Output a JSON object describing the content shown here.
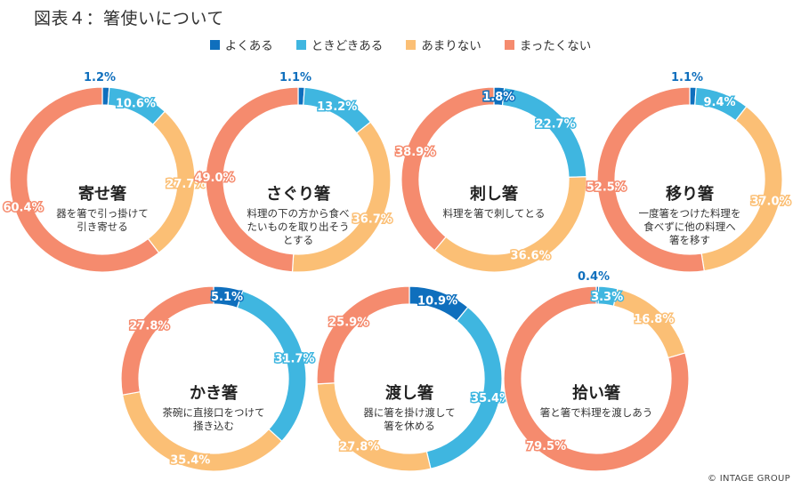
{
  "page": {
    "title": "図表４：箸使いについて",
    "copyright": "© INTAGE GROUP"
  },
  "legend": [
    {
      "label": "よくある",
      "color": "#0f6fbd"
    },
    {
      "label": "ときどきある",
      "color": "#3fb6e0"
    },
    {
      "label": "あまりない",
      "color": "#fbbf75"
    },
    {
      "label": "まったくない",
      "color": "#f58b6e"
    }
  ],
  "chart_data": [
    {
      "type": "pie",
      "title": "寄せ箸",
      "description": [
        "器を箸で引っ掛けて",
        "引き寄せる"
      ],
      "categories": [
        "よくある",
        "ときどきある",
        "あまりない",
        "まったくない"
      ],
      "values": [
        1.2,
        10.6,
        27.7,
        60.4
      ],
      "labels": [
        "1.2%",
        "10.6%",
        "27.7%",
        "60.4%"
      ]
    },
    {
      "type": "pie",
      "title": "さぐり箸",
      "description": [
        "料理の下の方から食べ",
        "たいものを取り出そう",
        "とする"
      ],
      "categories": [
        "よくある",
        "ときどきある",
        "あまりない",
        "まったくない"
      ],
      "values": [
        1.1,
        13.2,
        36.7,
        49.0
      ],
      "labels": [
        "1.1%",
        "13.2%",
        "36.7%",
        "49.0%"
      ]
    },
    {
      "type": "pie",
      "title": "刺し箸",
      "description": [
        "料理を箸で刺してとる"
      ],
      "categories": [
        "よくある",
        "ときどきある",
        "あまりない",
        "まったくない"
      ],
      "values": [
        1.8,
        22.7,
        36.6,
        38.9
      ],
      "labels": [
        "1.8%",
        "22.7%",
        "36.6%",
        "38.9%"
      ]
    },
    {
      "type": "pie",
      "title": "移り箸",
      "description": [
        "一度箸をつけた料理を",
        "食べずに他の料理へ",
        "箸を移す"
      ],
      "categories": [
        "よくある",
        "ときどきある",
        "あまりない",
        "まったくない"
      ],
      "values": [
        1.1,
        9.4,
        37.0,
        52.5
      ],
      "labels": [
        "1.1%",
        "9.4%",
        "37.0%",
        "52.5%"
      ]
    },
    {
      "type": "pie",
      "title": "かき箸",
      "description": [
        "茶碗に直接口をつけて",
        "掻き込む"
      ],
      "categories": [
        "よくある",
        "ときどきある",
        "あまりない",
        "まったくない"
      ],
      "values": [
        5.1,
        31.7,
        35.4,
        27.8
      ],
      "labels": [
        "5.1%",
        "31.7%",
        "35.4%",
        "27.8%"
      ]
    },
    {
      "type": "pie",
      "title": "渡し箸",
      "description": [
        "器に箸を掛け渡して",
        "箸を休める"
      ],
      "categories": [
        "よくある",
        "ときどきある",
        "あまりない",
        "まったくない"
      ],
      "values": [
        10.9,
        35.4,
        27.8,
        25.9
      ],
      "labels": [
        "10.9%",
        "35.4%",
        "27.8%",
        "25.9%"
      ]
    },
    {
      "type": "pie",
      "title": "拾い箸",
      "description": [
        "箸と箸で料理を渡しあう"
      ],
      "categories": [
        "よくある",
        "ときどきある",
        "あまりない",
        "まったくない"
      ],
      "values": [
        0.4,
        3.3,
        16.8,
        79.5
      ],
      "labels": [
        "0.4%",
        "3.3%",
        "16.8%",
        "79.5%"
      ]
    }
  ]
}
